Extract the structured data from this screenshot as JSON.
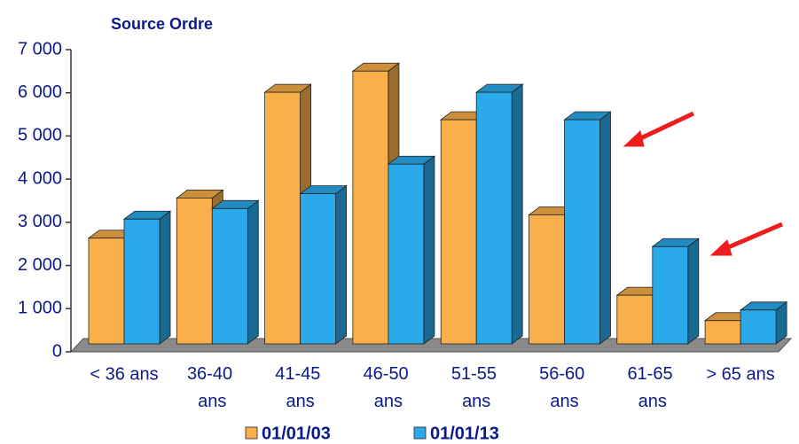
{
  "chart_data": {
    "type": "bar3d",
    "title": "Source Ordre",
    "categories": [
      "< 36 ans",
      "36-40 ans",
      "41-45 ans",
      "46-50 ans",
      "51-55 ans",
      "56-60 ans",
      "61-65 ans",
      "> 65 ans"
    ],
    "series": [
      {
        "name": "01/01/03",
        "color": "#f9b04a",
        "values": [
          2500,
          3450,
          5950,
          6450,
          5300,
          3050,
          1150,
          550
        ]
      },
      {
        "name": "01/01/13",
        "color": "#2aaaeb",
        "values": [
          2950,
          3200,
          3550,
          4250,
          5950,
          5300,
          2300,
          800
        ]
      }
    ],
    "ylim": [
      0,
      7000
    ],
    "yticks": [
      0,
      {
        "value": 1000,
        "label": "1 000"
      },
      {
        "value": 2000,
        "label": "2 000"
      },
      {
        "value": 3000,
        "label": "3 000"
      },
      {
        "value": 4000,
        "label": "4 000"
      },
      {
        "value": 5000,
        "label": "5 000"
      },
      {
        "value": 6000,
        "label": "6 000"
      },
      {
        "value": 7000,
        "label": "7 000"
      }
    ]
  }
}
